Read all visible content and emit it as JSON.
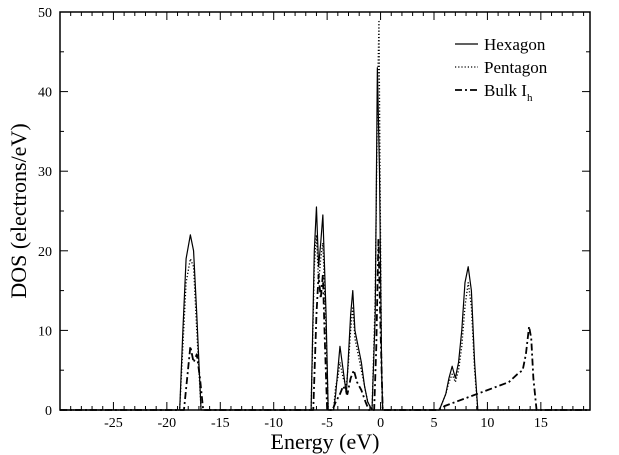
{
  "chart_data": {
    "type": "line",
    "xlabel": "Energy (eV)",
    "ylabel": "DOS (electrons/eV)",
    "xlim": [
      -30,
      19.6
    ],
    "ylim": [
      0,
      50
    ],
    "x_ticks": [
      -25,
      -20,
      -15,
      -10,
      -5,
      0,
      5,
      10,
      15
    ],
    "x_tick_labels": [
      "-25",
      "-20",
      "-15",
      "-10",
      "-5",
      "0",
      "5",
      "10",
      "15"
    ],
    "y_ticks": [
      0,
      10,
      20,
      30,
      40,
      50
    ],
    "y_tick_labels": [
      "0",
      "10",
      "20",
      "30",
      "40",
      "50"
    ],
    "legend_position": "top-right",
    "series": [
      {
        "name": "Hexagon",
        "style": "solid",
        "points": [
          [
            -30,
            0
          ],
          [
            -18.8,
            0
          ],
          [
            -18.5,
            10
          ],
          [
            -18.2,
            19
          ],
          [
            -17.8,
            22
          ],
          [
            -17.5,
            20
          ],
          [
            -17.2,
            12
          ],
          [
            -16.8,
            0
          ],
          [
            -6.5,
            0
          ],
          [
            -6.2,
            20
          ],
          [
            -6.0,
            25.5
          ],
          [
            -5.8,
            18
          ],
          [
            -5.6,
            21
          ],
          [
            -5.4,
            24.5
          ],
          [
            -5.1,
            12
          ],
          [
            -4.9,
            0
          ],
          [
            -4.4,
            0
          ],
          [
            -4.2,
            2
          ],
          [
            -4.0,
            5
          ],
          [
            -3.8,
            8
          ],
          [
            -3.5,
            5
          ],
          [
            -3.2,
            2
          ],
          [
            -3.0,
            7
          ],
          [
            -2.8,
            12
          ],
          [
            -2.6,
            15
          ],
          [
            -2.4,
            10
          ],
          [
            -2.1,
            8
          ],
          [
            -1.8,
            6
          ],
          [
            -1.5,
            3
          ],
          [
            -1.2,
            1
          ],
          [
            -0.8,
            0
          ],
          [
            -0.5,
            12
          ],
          [
            -0.3,
            43
          ],
          [
            -0.1,
            30
          ],
          [
            0.1,
            5
          ],
          [
            0.2,
            0
          ],
          [
            5.5,
            0
          ],
          [
            5.8,
            1
          ],
          [
            6.1,
            2
          ],
          [
            6.4,
            4
          ],
          [
            6.7,
            5.5
          ],
          [
            7.0,
            4
          ],
          [
            7.3,
            6
          ],
          [
            7.6,
            10
          ],
          [
            7.9,
            16
          ],
          [
            8.2,
            18
          ],
          [
            8.5,
            15
          ],
          [
            8.8,
            6
          ],
          [
            9.1,
            0
          ],
          [
            19.6,
            0
          ]
        ]
      },
      {
        "name": "Pentagon",
        "style": "dotted",
        "points": [
          [
            -30,
            0
          ],
          [
            -18.8,
            0
          ],
          [
            -18.5,
            8
          ],
          [
            -18.2,
            16
          ],
          [
            -17.8,
            19
          ],
          [
            -17.5,
            18
          ],
          [
            -17.2,
            10
          ],
          [
            -16.8,
            0
          ],
          [
            -6.5,
            0
          ],
          [
            -6.2,
            18
          ],
          [
            -6.0,
            22
          ],
          [
            -5.8,
            16
          ],
          [
            -5.6,
            19
          ],
          [
            -5.4,
            21
          ],
          [
            -5.1,
            10
          ],
          [
            -4.9,
            0
          ],
          [
            -4.4,
            0
          ],
          [
            -4.2,
            3
          ],
          [
            -4.0,
            4
          ],
          [
            -3.8,
            6
          ],
          [
            -3.5,
            4
          ],
          [
            -3.2,
            3
          ],
          [
            -3.0,
            6
          ],
          [
            -2.8,
            10
          ],
          [
            -2.6,
            13
          ],
          [
            -2.4,
            9
          ],
          [
            -2.1,
            7
          ],
          [
            -1.8,
            5
          ],
          [
            -1.5,
            3
          ],
          [
            -1.2,
            1
          ],
          [
            -0.8,
            0
          ],
          [
            -0.5,
            14
          ],
          [
            -0.3,
            38
          ],
          [
            -0.15,
            49
          ],
          [
            -0.05,
            30
          ],
          [
            0.1,
            4
          ],
          [
            0.2,
            0
          ],
          [
            5.5,
            0
          ],
          [
            5.8,
            1
          ],
          [
            6.1,
            2
          ],
          [
            6.4,
            3.5
          ],
          [
            6.7,
            4.5
          ],
          [
            7.0,
            3.5
          ],
          [
            7.3,
            5
          ],
          [
            7.6,
            8
          ],
          [
            7.9,
            13
          ],
          [
            8.2,
            16
          ],
          [
            8.5,
            13
          ],
          [
            8.8,
            5
          ],
          [
            9.1,
            0
          ],
          [
            19.6,
            0
          ]
        ]
      },
      {
        "name": "Bulk I_h",
        "style": "dash-dot",
        "points": [
          [
            -30,
            0
          ],
          [
            -18.4,
            0
          ],
          [
            -18.1,
            4
          ],
          [
            -17.8,
            8
          ],
          [
            -17.5,
            6
          ],
          [
            -17.2,
            7
          ],
          [
            -16.9,
            4
          ],
          [
            -16.6,
            0
          ],
          [
            -6.3,
            0
          ],
          [
            -6.0,
            12
          ],
          [
            -5.8,
            17
          ],
          [
            -5.6,
            14
          ],
          [
            -5.4,
            17
          ],
          [
            -5.2,
            8
          ],
          [
            -5.0,
            0
          ],
          [
            -4.5,
            0
          ],
          [
            -4.2,
            1
          ],
          [
            -3.8,
            2
          ],
          [
            -3.5,
            3
          ],
          [
            -3.1,
            2
          ],
          [
            -2.8,
            4
          ],
          [
            -2.5,
            5
          ],
          [
            -2.2,
            3.5
          ],
          [
            -1.8,
            2.5
          ],
          [
            -1.4,
            1
          ],
          [
            -1.1,
            0
          ],
          [
            -0.6,
            0
          ],
          [
            -0.4,
            8
          ],
          [
            -0.2,
            21.5
          ],
          [
            0.0,
            10
          ],
          [
            0.2,
            0
          ],
          [
            5.4,
            0
          ],
          [
            6.0,
            0.5
          ],
          [
            7.0,
            1
          ],
          [
            8.0,
            1.5
          ],
          [
            9.0,
            2
          ],
          [
            10.0,
            2.5
          ],
          [
            11.0,
            3
          ],
          [
            12.0,
            3.5
          ],
          [
            12.8,
            4.5
          ],
          [
            13.3,
            5
          ],
          [
            13.6,
            7
          ],
          [
            13.9,
            10.5
          ],
          [
            14.1,
            9
          ],
          [
            14.3,
            4
          ],
          [
            14.6,
            0
          ],
          [
            19.6,
            0
          ]
        ]
      }
    ]
  }
}
